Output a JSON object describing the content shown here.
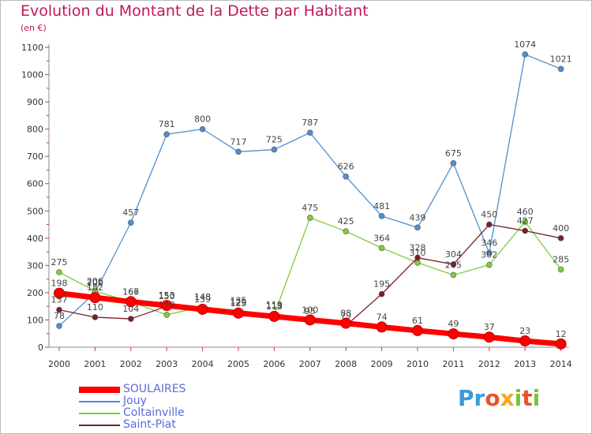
{
  "chart_data": {
    "type": "line",
    "title": "Evolution du Montant de la Dette par Habitant",
    "subtitle": "(en €)",
    "x": [
      "2000",
      "2001",
      "2002",
      "2003",
      "2004",
      "2005",
      "2006",
      "2007",
      "2008",
      "2009",
      "2010",
      "2011",
      "2012",
      "2013",
      "2014"
    ],
    "ylim": [
      0,
      1100
    ],
    "yticks": [
      0,
      100,
      200,
      300,
      400,
      500,
      600,
      700,
      800,
      900,
      1000,
      1100
    ],
    "grid": false,
    "legend_position": "bottom-left",
    "series": [
      {
        "name": "SOULAIRES",
        "color": "#ff0000",
        "values": [
          198,
          182,
          167,
          153,
          139,
          125,
          113,
          100,
          88,
          74,
          61,
          49,
          37,
          23,
          12
        ]
      },
      {
        "name": "Jouy",
        "color": "#4f8fd0",
        "values": [
          78,
          200,
          457,
          781,
          800,
          717,
          725,
          787,
          626,
          481,
          439,
          675,
          346,
          1074,
          1021
        ]
      },
      {
        "name": "Coltainville",
        "color": "#7ecd3c",
        "values": [
          275,
          206,
          166,
          119,
          148,
          135,
          119,
          475,
          425,
          364,
          310,
          265,
          302,
          460,
          285
        ]
      },
      {
        "name": "Saint-Piat",
        "color": "#7a1f2a",
        "values": [
          137,
          110,
          104,
          150,
          148,
          129,
          115,
          95,
          79,
          195,
          328,
          304,
          450,
          427,
          400
        ]
      }
    ]
  },
  "logo": {
    "p": "Pr",
    "o": "o",
    "x": "x",
    "i": "i",
    "t": "t",
    "i2": "i"
  }
}
